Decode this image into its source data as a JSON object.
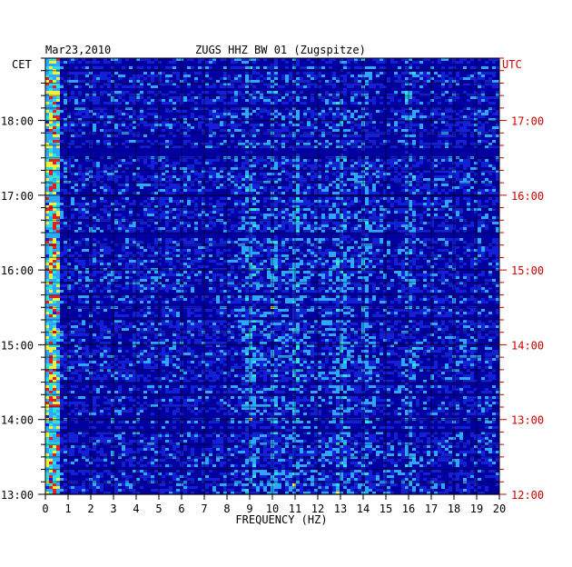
{
  "header": {
    "date": "Mar23,2010",
    "title": "ZUGS HHZ BW 01 (Zugspitze)"
  },
  "chart_data": {
    "type": "heatmap",
    "title": "ZUGS HHZ BW 01 (Zugspitze)",
    "xlabel": "FREQUENCY (HZ)",
    "xlim": [
      0,
      20
    ],
    "x_ticks": [
      "0",
      "1",
      "2",
      "3",
      "4",
      "5",
      "6",
      "7",
      "8",
      "9",
      "10",
      "11",
      "12",
      "13",
      "14",
      "15",
      "16",
      "17",
      "18",
      "19",
      "20"
    ],
    "left_axis": {
      "label": "CET",
      "ticks": [
        "18:00",
        "17:00",
        "16:00",
        "15:00",
        "14:00",
        "13:00"
      ],
      "color": "#000000"
    },
    "right_axis": {
      "label": "UTC",
      "ticks": [
        "17:00",
        "16:00",
        "15:00",
        "14:00",
        "13:00",
        "12:00"
      ],
      "color": "#cc0000"
    },
    "time_range_cet": [
      "13:00",
      "18:50"
    ],
    "colors": {
      "background": "#0000a0",
      "low": "#1420d8",
      "mid": "#2ea8ff",
      "high": "#30e0e0",
      "peak_yellow": "#f0f040",
      "peak_red": "#e02020"
    },
    "notable_frequency_lines_hz": [
      0.2,
      9,
      10,
      11,
      13,
      14,
      16
    ],
    "grid": true
  }
}
